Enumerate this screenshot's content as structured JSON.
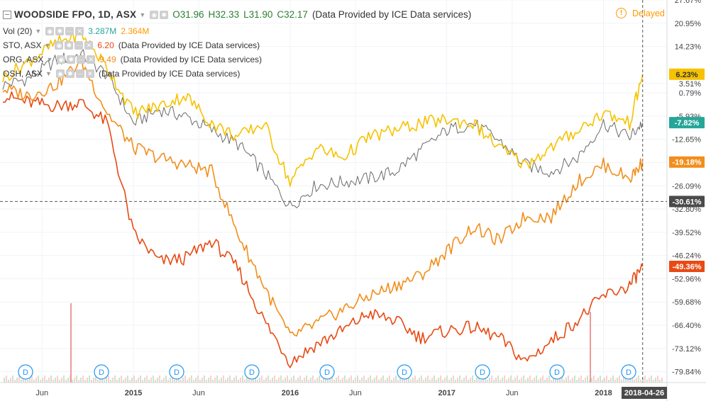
{
  "header": {
    "symbol": "WOODSIDE FPO, 1D, ASX",
    "open": "O31.96",
    "high": "H32.33",
    "low": "L31.90",
    "close": "C32.17",
    "provider": "(Data Provided by ICE Data services)",
    "delayed_label": "Delayed"
  },
  "indicators": [
    {
      "label": "Vol (20)",
      "v1": "3.287M",
      "v2": "2.364M",
      "v1_color": "#26a69a",
      "v2_color": "#ff9800"
    },
    {
      "label": "STO, ASX",
      "value": "6.20",
      "provider": "(Data Provided by ICE Data services)",
      "color": "#e84a14"
    },
    {
      "label": "ORG, ASX",
      "value": "9.49",
      "provider": "(Data Provided by ICE Data services)",
      "color": "#f28e1c"
    },
    {
      "label": "OSH, ASX",
      "value": "",
      "provider": "(Data Provided by ICE Data services)",
      "color": "#f6c200"
    }
  ],
  "chart_data": {
    "type": "line",
    "y_axis_unit": "%",
    "y_ticks": [
      "27.67%",
      "20.95%",
      "14.23%",
      "3.51%",
      "0.79%",
      "-5.93%",
      "-12.65%",
      "-19.37%",
      "-26.09%",
      "-32.80%",
      "-39.52%",
      "-46.24%",
      "-52.96%",
      "-59.68%",
      "-66.40%",
      "-73.12%",
      "-79.84%"
    ],
    "x_ticks": [
      "Jun",
      "2015",
      "Jun",
      "2016",
      "Jun",
      "2017",
      "Jun",
      "2018"
    ],
    "x_cursor_label": "2018-04-26",
    "crosshair_value": "-30.61%",
    "x": [
      "2014-03",
      "2014-05",
      "2014-07",
      "2014-09",
      "2014-11",
      "2015-01",
      "2015-03",
      "2015-05",
      "2015-07",
      "2015-09",
      "2015-11",
      "2016-01",
      "2016-03",
      "2016-05",
      "2016-07",
      "2016-09",
      "2016-11",
      "2017-01",
      "2017-03",
      "2017-05",
      "2017-07",
      "2017-09",
      "2017-11",
      "2018-01",
      "2018-03",
      "2018-04"
    ],
    "series": [
      {
        "label": "WPL",
        "color": "#6b6b6b",
        "last_label": "-7.82%",
        "label_color": "#26a69a",
        "values": [
          3,
          5,
          10,
          12,
          6,
          -8,
          -4,
          -6,
          -10,
          -14,
          -22,
          -32,
          -26,
          -25,
          -24,
          -22,
          -16,
          -10,
          -8,
          -13,
          -20,
          -22,
          -18,
          -8,
          -12,
          -7.8
        ]
      },
      {
        "label": "STO",
        "color": "#e84a14",
        "last_label": "-49.36%",
        "label_color": "#e84a14",
        "values": [
          0,
          -2,
          -3,
          -2,
          -8,
          -40,
          -48,
          -47,
          -42,
          -50,
          -65,
          -77,
          -72,
          -68,
          -63,
          -65,
          -70,
          -68,
          -67,
          -70,
          -77,
          -71,
          -65,
          -58,
          -55,
          -49.4
        ]
      },
      {
        "label": "ORG",
        "color": "#f28e1c",
        "last_label": "-19.18%",
        "label_color": "#f28e1c",
        "values": [
          2,
          0,
          3,
          10,
          -5,
          -15,
          -18,
          -20,
          -22,
          -40,
          -55,
          -70,
          -66,
          -62,
          -58,
          -55,
          -52,
          -45,
          -38,
          -42,
          -35,
          -35,
          -25,
          -20,
          -24,
          -19.2
        ]
      },
      {
        "label": "OSH",
        "color": "#f6c200",
        "last_label": "6.23%",
        "label_color": "#f6c200",
        "values": [
          5,
          10,
          15,
          18,
          8,
          -5,
          -3,
          0,
          -8,
          -12,
          -8,
          -25,
          -15,
          -18,
          -12,
          -10,
          -8,
          -7,
          -8,
          -15,
          -20,
          -15,
          -10,
          -5,
          -8,
          6.2
        ]
      }
    ],
    "volume_markers": [
      "D",
      "D",
      "D",
      "D",
      "D",
      "D",
      "D",
      "D",
      "D"
    ]
  }
}
